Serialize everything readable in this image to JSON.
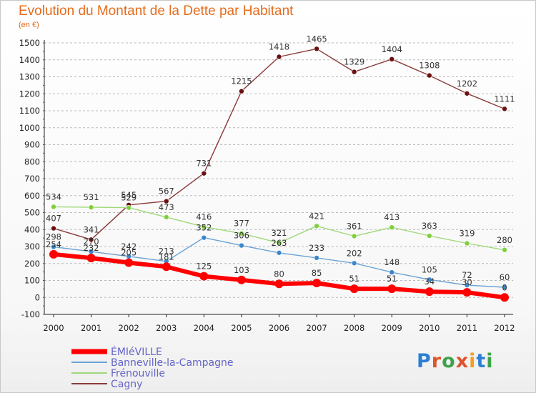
{
  "title": "Evolution du Montant de la Dette par Habitant",
  "unit_label": "(en €)",
  "logo_text": "Proxiti",
  "colors": {
    "title": "#e46c1c",
    "grid": "#b9b9b9",
    "axis": "#222222",
    "tick_marks": "#dd2222"
  },
  "chart_data": {
    "type": "line",
    "x": [
      2000,
      2001,
      2002,
      2003,
      2004,
      2005,
      2006,
      2007,
      2008,
      2009,
      2010,
      2011,
      2012
    ],
    "ylim": [
      -100,
      1500
    ],
    "yticks": [
      -100,
      0,
      100,
      200,
      300,
      400,
      500,
      600,
      700,
      800,
      900,
      1000,
      1100,
      1200,
      1300,
      1400,
      1500
    ],
    "grid": "horizontal dashed",
    "legend_position": "bottom-left",
    "series": [
      {
        "name": "ÉMIéVILLE",
        "color": "#ff0000",
        "marker_color": "#ff0000",
        "width": 6,
        "label_color": "#333333",
        "values": [
          254,
          232,
          205,
          181,
          125,
          103,
          80,
          85,
          51,
          51,
          34,
          30,
          0
        ]
      },
      {
        "name": "Banneville-la-Campagne",
        "color": "#6aa2d4",
        "marker_color": "#3d86cc",
        "width": 1.4,
        "label_color": "#333333",
        "values": [
          298,
          270,
          242,
          213,
          352,
          306,
          263,
          233,
          202,
          148,
          105,
          72,
          60
        ]
      },
      {
        "name": "Frénouville",
        "color": "#9fd97a",
        "marker_color": "#7fd03c",
        "width": 1.4,
        "label_color": "#333333",
        "values": [
          534,
          531,
          529,
          473,
          416,
          377,
          321,
          421,
          361,
          413,
          363,
          319,
          280
        ]
      },
      {
        "name": "Cagny",
        "color": "#8a3a3a",
        "marker_color": "#6a1010",
        "width": 1.4,
        "label_color": "#333333",
        "values": [
          407,
          341,
          545,
          567,
          731,
          1215,
          1418,
          1465,
          1329,
          1404,
          1308,
          1202,
          1111
        ]
      }
    ]
  }
}
